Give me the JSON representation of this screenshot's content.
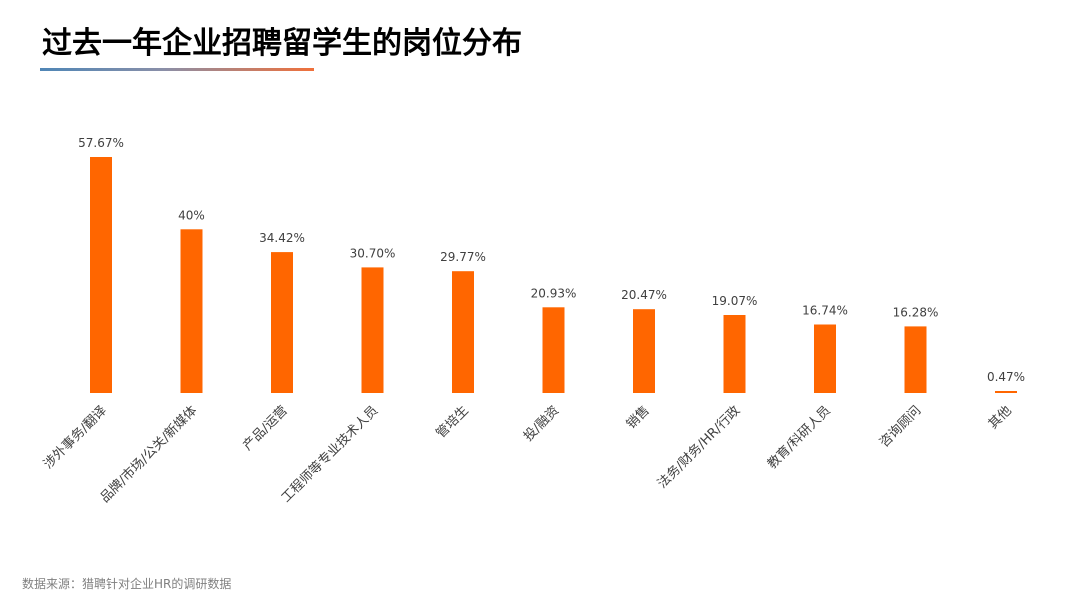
{
  "page": {
    "title": "过去一年企业招聘留学生的岗位分布",
    "source": "数据来源：猎聘针对企业HR的调研数据"
  },
  "colors": {
    "bar": "#ff6600",
    "title_rule_start": "#4f86b6",
    "title_rule_end": "#f0703a"
  },
  "chart_data": {
    "type": "bar",
    "title": "过去一年企业招聘留学生的岗位分布",
    "categories": [
      "涉外事务/翻译",
      "品牌/市场/公关/新媒体",
      "产品/运营",
      "工程师等专业技术人员",
      "管培生",
      "投/融资",
      "销售",
      "法务/财务/HR/行政",
      "教育/科研人员",
      "咨询顾问",
      "其他"
    ],
    "values": [
      57.67,
      40,
      34.42,
      30.7,
      29.77,
      20.93,
      20.47,
      19.07,
      16.74,
      16.28,
      0.47
    ],
    "value_labels": [
      "57.67%",
      "40%",
      "34.42%",
      "30.70%",
      "29.77%",
      "20.93%",
      "20.47%",
      "19.07%",
      "16.74%",
      "16.28%",
      "0.47%"
    ],
    "xlabel": "",
    "ylabel": "",
    "ylim": [
      0,
      60
    ],
    "grid": false,
    "legend": "none",
    "x_tick_rotation_deg": -45
  }
}
